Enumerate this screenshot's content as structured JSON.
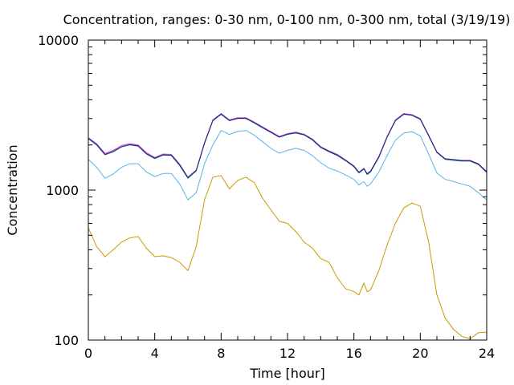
{
  "chart_data": {
    "type": "line",
    "title": "Concentration, ranges: 0-30 nm, 0-100 nm, 0-300 nm, total (3/19/19)",
    "xlabel": "Time [hour]",
    "ylabel": "Concentration",
    "xlim": [
      0,
      24
    ],
    "ylim": [
      100,
      10000
    ],
    "yscale": "log",
    "grid": false,
    "x_ticks": [
      0,
      4,
      8,
      12,
      16,
      20,
      24
    ],
    "x_tick_labels": [
      "0",
      "4",
      "8",
      "12",
      "16",
      "20",
      "24"
    ],
    "y_ticks": [
      100,
      1000,
      10000
    ],
    "y_tick_labels": [
      "100",
      "1000",
      "10000"
    ],
    "series": [
      {
        "color": "#cc9900",
        "x": [
          0,
          0.5,
          1,
          1.5,
          2,
          2.5,
          3,
          3.5,
          4,
          4.5,
          5,
          5.5,
          6,
          6.5,
          7,
          7.5,
          8,
          8.5,
          9,
          9.5,
          10,
          10.5,
          11,
          11.5,
          12,
          12.5,
          13,
          13.5,
          14,
          14.5,
          15,
          15.5,
          16,
          16.3,
          16.6,
          16.8,
          17,
          17.5,
          18,
          18.5,
          19,
          19.5,
          20,
          20.5,
          21,
          21.5,
          22,
          22.5,
          23,
          23.5,
          24
        ],
        "y": [
          560,
          420,
          360,
          400,
          450,
          480,
          490,
          410,
          360,
          365,
          355,
          330,
          290,
          420,
          860,
          1220,
          1250,
          1020,
          1160,
          1220,
          1120,
          880,
          740,
          620,
          600,
          530,
          450,
          410,
          350,
          330,
          260,
          220,
          210,
          200,
          240,
          210,
          215,
          290,
          430,
          600,
          760,
          820,
          780,
          450,
          200,
          140,
          118,
          106,
          102,
          112,
          113
        ]
      },
      {
        "color": "#56b4e9",
        "x": [
          0,
          0.5,
          1,
          1.5,
          2,
          2.5,
          3,
          3.5,
          4,
          4.5,
          5,
          5.5,
          6,
          6.5,
          7,
          7.5,
          8,
          8.5,
          9,
          9.5,
          10,
          10.5,
          11,
          11.5,
          12,
          12.5,
          13,
          13.5,
          14,
          14.5,
          15,
          15.5,
          16,
          16.3,
          16.6,
          16.8,
          17,
          17.5,
          18,
          18.5,
          19,
          19.5,
          20,
          20.5,
          21,
          21.5,
          22,
          22.5,
          23,
          23.5,
          24
        ],
        "y": [
          1600,
          1420,
          1200,
          1280,
          1420,
          1500,
          1500,
          1320,
          1230,
          1290,
          1290,
          1100,
          860,
          960,
          1500,
          2000,
          2500,
          2350,
          2460,
          2500,
          2320,
          2100,
          1900,
          1760,
          1840,
          1900,
          1840,
          1700,
          1520,
          1400,
          1340,
          1260,
          1180,
          1080,
          1140,
          1060,
          1100,
          1320,
          1700,
          2150,
          2400,
          2450,
          2300,
          1740,
          1300,
          1180,
          1140,
          1100,
          1060,
          960,
          860
        ]
      },
      {
        "color": "#009e73",
        "x": [
          0,
          0.5,
          1,
          1.5,
          2,
          2.5,
          3,
          3.5,
          4,
          4.5,
          5,
          5.5,
          6,
          6.5,
          7,
          7.5,
          8,
          8.5,
          9,
          9.5,
          10,
          10.5,
          11,
          11.5,
          12,
          12.5,
          13,
          13.5,
          14,
          14.5,
          15,
          15.5,
          16,
          16.3,
          16.6,
          16.8,
          17,
          17.5,
          18,
          18.5,
          19,
          19.5,
          20,
          20.5,
          21,
          21.5,
          22,
          22.5,
          23,
          23.5,
          24
        ],
        "y": [
          2200,
          2000,
          1720,
          1800,
          1940,
          2000,
          1960,
          1740,
          1620,
          1710,
          1700,
          1460,
          1200,
          1340,
          2050,
          2900,
          3200,
          2900,
          3000,
          3000,
          2800,
          2600,
          2420,
          2250,
          2350,
          2400,
          2330,
          2160,
          1920,
          1800,
          1700,
          1570,
          1430,
          1300,
          1380,
          1270,
          1320,
          1650,
          2250,
          2900,
          3200,
          3150,
          2960,
          2300,
          1780,
          1600,
          1580,
          1560,
          1560,
          1480,
          1310
        ]
      },
      {
        "color": "#e040e0",
        "x": [
          0,
          0.5,
          1,
          1.5,
          2,
          2.5,
          3,
          3.5,
          4,
          4.5,
          5,
          5.5,
          6,
          6.5,
          7,
          7.5,
          8,
          8.5,
          9,
          9.5,
          10,
          10.5,
          11,
          11.5,
          12,
          12.5,
          13,
          13.5,
          14,
          14.5,
          15,
          15.5,
          16,
          16.3,
          16.6,
          16.8,
          17,
          17.5,
          18,
          18.5,
          19,
          19.5,
          20,
          20.5,
          21,
          21.5,
          22,
          22.5,
          23,
          23.5,
          24
        ],
        "y": [
          2240,
          2040,
          1760,
          1840,
          1980,
          2040,
          2000,
          1780,
          1650,
          1740,
          1730,
          1490,
          1220,
          1360,
          2080,
          2940,
          3240,
          2940,
          3040,
          3040,
          2840,
          2640,
          2460,
          2280,
          2380,
          2440,
          2360,
          2190,
          1950,
          1830,
          1730,
          1590,
          1450,
          1320,
          1400,
          1290,
          1340,
          1680,
          2280,
          2940,
          3240,
          3190,
          3000,
          2330,
          1800,
          1620,
          1600,
          1580,
          1580,
          1500,
          1330
        ]
      },
      {
        "color": "#1a237e",
        "x": [
          0,
          0.5,
          1,
          1.5,
          2,
          2.5,
          3,
          3.5,
          4,
          4.5,
          5,
          5.5,
          6,
          6.5,
          7,
          7.5,
          8,
          8.5,
          9,
          9.5,
          10,
          10.5,
          11,
          11.5,
          12,
          12.5,
          13,
          13.5,
          14,
          14.5,
          15,
          15.5,
          16,
          16.3,
          16.6,
          16.8,
          17,
          17.5,
          18,
          18.5,
          19,
          19.5,
          20,
          20.5,
          21,
          21.5,
          22,
          22.5,
          23,
          23.5,
          24
        ],
        "y": [
          2210,
          2010,
          1730,
          1810,
          1950,
          2010,
          1970,
          1750,
          1630,
          1720,
          1710,
          1470,
          1210,
          1350,
          2060,
          2910,
          3210,
          2910,
          3010,
          3010,
          2810,
          2610,
          2430,
          2260,
          2360,
          2410,
          2340,
          2170,
          1930,
          1810,
          1710,
          1580,
          1440,
          1310,
          1390,
          1280,
          1330,
          1660,
          2260,
          2910,
          3210,
          3160,
          2970,
          2310,
          1790,
          1610,
          1590,
          1570,
          1570,
          1490,
          1320
        ]
      }
    ]
  }
}
